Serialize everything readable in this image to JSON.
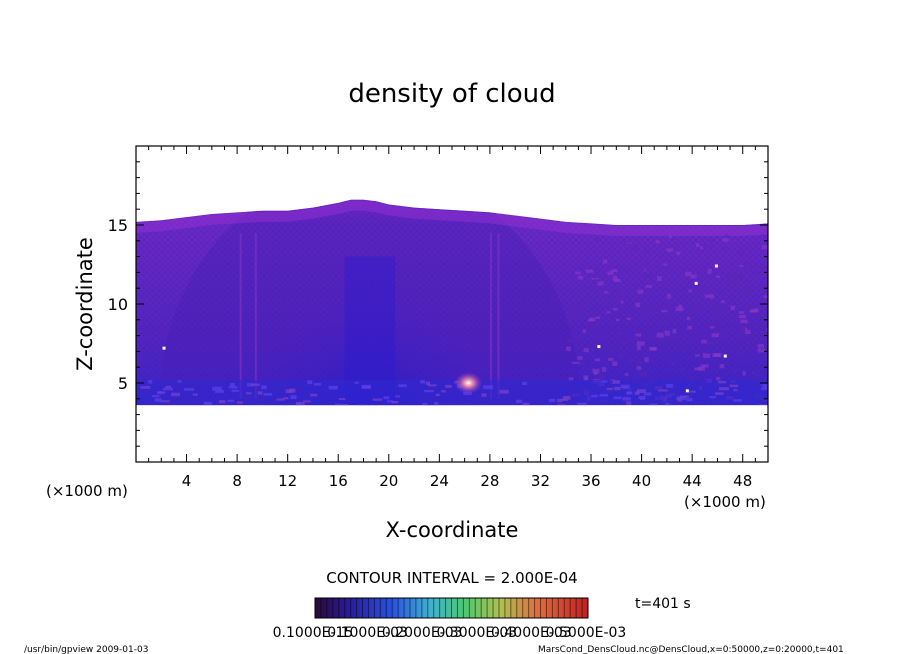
{
  "chart_data": {
    "type": "heatmap",
    "title": "density of cloud",
    "xlabel": "X-coordinate",
    "ylabel": "Z-coordinate",
    "x_unit": "(×1000 m)",
    "z_unit": "(×1000 m)",
    "xlim": [
      0,
      50
    ],
    "ylim": [
      0,
      20
    ],
    "x_ticks": [
      4,
      8,
      12,
      16,
      20,
      24,
      28,
      32,
      36,
      40,
      44,
      48
    ],
    "y_ticks": [
      5,
      10,
      15
    ],
    "cloud_base_km": 3.6,
    "cloud_top_km": [
      [
        0,
        15.2
      ],
      [
        2,
        15.3
      ],
      [
        4,
        15.5
      ],
      [
        6,
        15.7
      ],
      [
        8,
        15.8
      ],
      [
        10,
        15.9
      ],
      [
        12,
        15.9
      ],
      [
        14,
        16.1
      ],
      [
        16,
        16.4
      ],
      [
        17,
        16.6
      ],
      [
        18,
        16.6
      ],
      [
        19,
        16.5
      ],
      [
        20,
        16.3
      ],
      [
        22,
        16.1
      ],
      [
        24,
        16.0
      ],
      [
        26,
        15.9
      ],
      [
        28,
        15.8
      ],
      [
        30,
        15.6
      ],
      [
        32,
        15.4
      ],
      [
        34,
        15.2
      ],
      [
        36,
        15.1
      ],
      [
        38,
        15.0
      ],
      [
        40,
        15.0
      ],
      [
        42,
        15.0
      ],
      [
        44,
        15.0
      ],
      [
        46,
        15.0
      ],
      [
        48,
        15.0
      ],
      [
        50,
        15.1
      ]
    ],
    "contour_interval": "CONTOUR INTERVAL = 2.000E-04",
    "colorbar_labels": [
      "0.1000E-15",
      "0.1000E-03",
      "0.2000E-03",
      "0.3000E-03",
      "0.4000E-03",
      "0.5000E-03"
    ],
    "time_label": "t=401 s"
  },
  "footer": {
    "program": "/usr/bin/gpview   2009-01-03",
    "source": "MarsCond_DensCloud.nc@DensCloud,x=0:50000,z=0:20000,t=401"
  },
  "colors": {
    "cloud_main": "#6a28c8",
    "cloud_top": "#8c2ccc",
    "cloud_core": "#1a1ad8",
    "cloud_base": "#2a30e0",
    "warm_spot": "#e86a8a"
  }
}
